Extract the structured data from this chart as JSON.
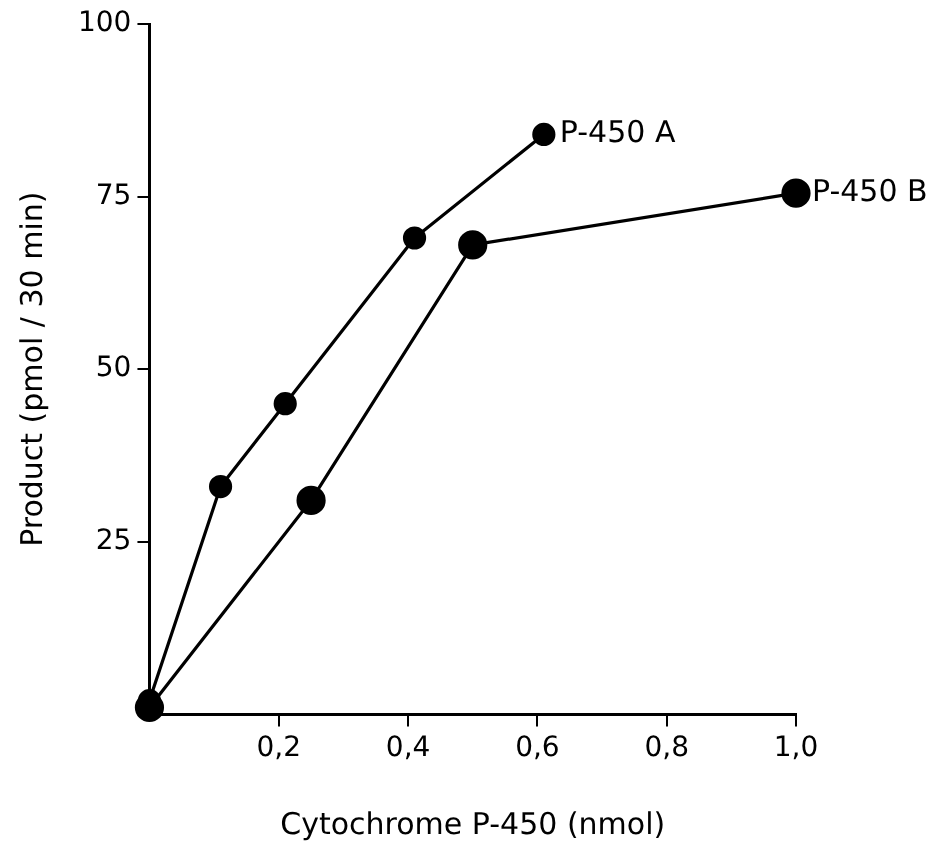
{
  "chart_data": {
    "type": "line",
    "xlabel": "Cytochrome P-450 (nmol)",
    "ylabel": "Product (pmol / 30 min)",
    "series": [
      {
        "name": "P-450 A",
        "color": "#000000",
        "x": [
          0,
          0.11,
          0.21,
          0.41,
          0.61
        ],
        "values": [
          2,
          33,
          45,
          69,
          84
        ]
      },
      {
        "name": "P-450 B",
        "color": "#000000",
        "x": [
          0,
          0.25,
          0.5,
          1.0
        ],
        "values": [
          1,
          31,
          68,
          75.5
        ]
      }
    ],
    "xlim": [
      0,
      1.0
    ],
    "ylim": [
      0,
      100
    ],
    "xticks": [
      {
        "value": 0.2,
        "label": "0,2"
      },
      {
        "value": 0.4,
        "label": "0,4"
      },
      {
        "value": 0.6,
        "label": "0,6"
      },
      {
        "value": 0.8,
        "label": "0,8"
      },
      {
        "value": 1.0,
        "label": "1,0"
      }
    ],
    "yticks": [
      25,
      50,
      75,
      100
    ],
    "grid": false,
    "legend": false,
    "marker": "circle",
    "line_style": "solid"
  }
}
